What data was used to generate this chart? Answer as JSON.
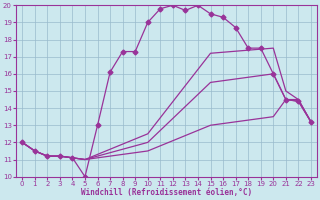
{
  "xlabel": "Windchill (Refroidissement éolien,°C)",
  "xlim": [
    -0.5,
    23.5
  ],
  "ylim": [
    10,
    20
  ],
  "xticks": [
    0,
    1,
    2,
    3,
    4,
    5,
    6,
    7,
    8,
    9,
    10,
    11,
    12,
    13,
    14,
    15,
    16,
    17,
    18,
    19,
    20,
    21,
    22,
    23
  ],
  "yticks": [
    10,
    11,
    12,
    13,
    14,
    15,
    16,
    17,
    18,
    19,
    20
  ],
  "background_color": "#cce8ee",
  "line_color": "#993399",
  "grid_color": "#99bbcc",
  "lines": [
    {
      "x": [
        0,
        1,
        2,
        3,
        4,
        5,
        6,
        7,
        8,
        9,
        10,
        11,
        12,
        13,
        14,
        15,
        16,
        17,
        18,
        19,
        20,
        21,
        22,
        23
      ],
      "y": [
        12.0,
        11.5,
        11.2,
        11.2,
        11.1,
        10.0,
        13.0,
        16.1,
        17.3,
        17.3,
        19.0,
        19.8,
        20.0,
        19.7,
        20.0,
        19.5,
        19.3,
        18.7,
        17.5,
        17.5,
        16.0,
        14.5,
        14.4,
        13.2
      ],
      "has_markers": true
    },
    {
      "x": [
        0,
        1,
        2,
        3,
        4,
        5,
        10,
        15,
        20,
        21,
        22,
        23
      ],
      "y": [
        12.0,
        11.5,
        11.2,
        11.2,
        11.1,
        11.0,
        12.5,
        17.2,
        17.5,
        15.0,
        14.5,
        13.2
      ],
      "has_markers": false
    },
    {
      "x": [
        0,
        1,
        2,
        3,
        4,
        5,
        10,
        15,
        20,
        21,
        22,
        23
      ],
      "y": [
        12.0,
        11.5,
        11.2,
        11.2,
        11.1,
        11.0,
        12.0,
        15.5,
        16.0,
        14.5,
        14.5,
        13.2
      ],
      "has_markers": false
    },
    {
      "x": [
        0,
        1,
        2,
        3,
        4,
        5,
        10,
        15,
        20,
        21,
        22,
        23
      ],
      "y": [
        12.0,
        11.5,
        11.2,
        11.2,
        11.1,
        11.0,
        11.5,
        13.0,
        13.5,
        14.5,
        14.4,
        13.2
      ],
      "has_markers": false
    }
  ],
  "marker": "D",
  "markersize": 2.5,
  "linewidth": 0.9
}
